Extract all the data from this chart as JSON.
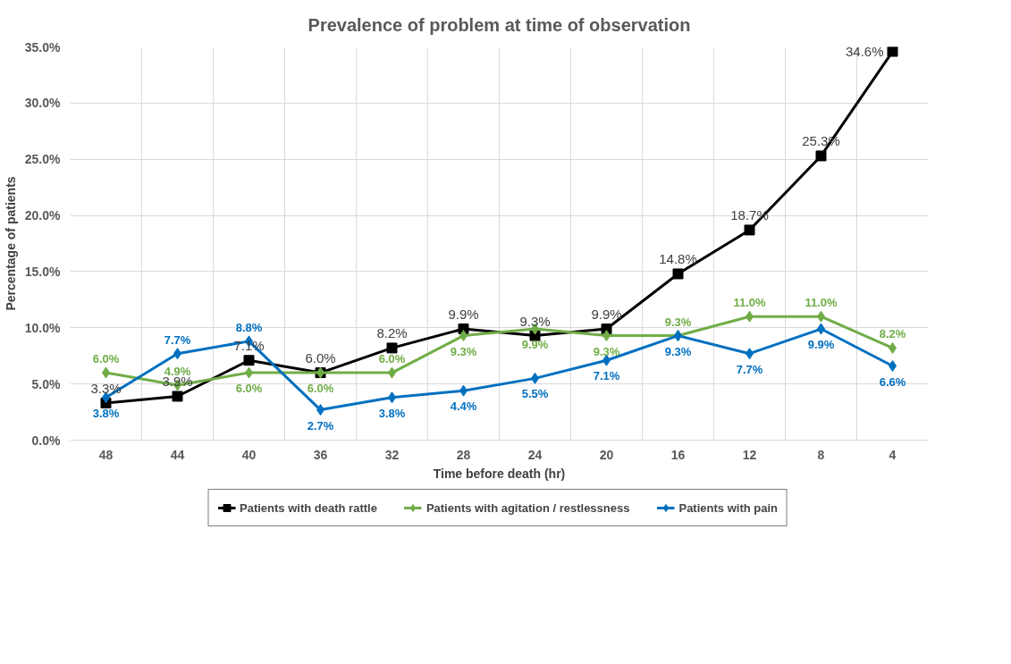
{
  "chart_data": {
    "type": "line",
    "title": "Prevalence of problem at time of observation",
    "xlabel": "Time before death (hr)",
    "ylabel": "Percentage of patients",
    "categories": [
      "48",
      "44",
      "40",
      "36",
      "32",
      "28",
      "24",
      "20",
      "16",
      "12",
      "8",
      "4"
    ],
    "series": [
      {
        "name": "Patients with death rattle",
        "color": "#000000",
        "marker": "square",
        "values": [
          3.3,
          3.9,
          7.1,
          6.0,
          8.2,
          9.9,
          9.3,
          9.9,
          14.8,
          18.7,
          25.3,
          34.6
        ],
        "value_labels": [
          "3.3%",
          "3.9%",
          "7.1%",
          "6.0%",
          "8.2%",
          "9.9%",
          "9.3%",
          "9.9%",
          "14.8%",
          "18.7%",
          "25.3%",
          "34.6%"
        ]
      },
      {
        "name": "Patients with agitation / restlessness",
        "color": "#70ad47",
        "marker": "diamond",
        "values": [
          6.0,
          4.9,
          6.0,
          6.0,
          6.0,
          9.3,
          9.9,
          9.3,
          9.3,
          11.0,
          11.0,
          8.2
        ],
        "value_labels": [
          "6.0%",
          "4.9%",
          "6.0%",
          "6.0%",
          "6.0%",
          "9.3%",
          "9.9%",
          "9.3%",
          "9.3%",
          "11.0%",
          "11.0%",
          "8.2%"
        ]
      },
      {
        "name": "Patients with pain",
        "color": "#0070c0",
        "marker": "diamond",
        "values": [
          3.8,
          7.7,
          8.8,
          2.7,
          3.8,
          4.4,
          5.5,
          7.1,
          9.3,
          7.7,
          9.9,
          6.6
        ],
        "value_labels": [
          "3.8%",
          "7.7%",
          "8.8%",
          "2.7%",
          "3.8%",
          "4.4%",
          "5.5%",
          "7.1%",
          "9.3%",
          "7.7%",
          "9.9%",
          "6.6%"
        ]
      }
    ],
    "ylim": [
      0,
      35
    ],
    "yticks": [
      {
        "value": 0,
        "label": "0.0%"
      },
      {
        "value": 5,
        "label": "5.0%"
      },
      {
        "value": 10,
        "label": "10.0%"
      },
      {
        "value": 15,
        "label": "15.0%"
      },
      {
        "value": 20,
        "label": "20.0%"
      },
      {
        "value": 25,
        "label": "25.0%"
      },
      {
        "value": 30,
        "label": "30.0%"
      },
      {
        "value": 35,
        "label": "35.0%"
      }
    ],
    "grid": true,
    "legend": "bottom",
    "line_style": "solid"
  }
}
